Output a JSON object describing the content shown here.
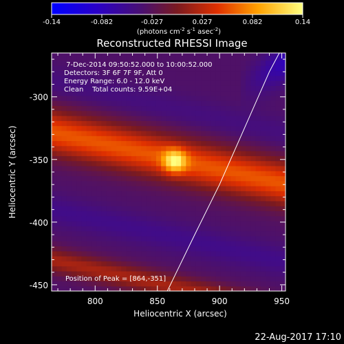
{
  "chart_data": {
    "type": "heatmap",
    "title": "Reconstructed RHESSI Image",
    "xlabel": "Heliocentric X (arcsec)",
    "ylabel": "Heliocentric Y (arcsec)",
    "xlim": [
      765,
      953
    ],
    "ylim": [
      -455,
      -265
    ],
    "xticks": [
      800,
      850,
      900,
      950
    ],
    "yticks": [
      -300,
      -350,
      -400,
      -450
    ],
    "colorbar": {
      "range": [
        -0.14,
        0.14
      ],
      "ticks": [
        "-0.14",
        "-0.082",
        "-0.027",
        "0.027",
        "0.082",
        "0.14"
      ],
      "label_prefix": "(photons cm",
      "label_exp1": "-2",
      "label_mid": " s",
      "label_exp2": "-1",
      "label_mid2": " asec",
      "label_exp3": "-2",
      "label_suffix": ")"
    },
    "info": [
      " 7-Dec-2014 09:50:52.000 to 10:00:52.000",
      "Detectors: 3F 6F 7F 9F, Att 0",
      "Energy Range: 6.0 - 12.0 keV",
      "Clean    Total counts: 9.59E+04"
    ],
    "peak": {
      "label": "Position of Peak = [864,-351]",
      "x": 864,
      "y": -351,
      "value": 0.14
    },
    "bands": [
      {
        "name": "upper band",
        "x": 765,
        "y": -328,
        "slope": -0.22,
        "width": 18,
        "value": 0.06
      },
      {
        "name": "lower band",
        "x": 765,
        "y": -430,
        "slope": -0.22,
        "width": 10,
        "value": 0.02
      }
    ],
    "troughs": [
      {
        "y": -288,
        "value": -0.03
      },
      {
        "y": -390,
        "value": -0.04
      }
    ],
    "limb": [
      [
        858,
        -455
      ],
      [
        880,
        -410
      ],
      [
        900,
        -370
      ],
      [
        920,
        -325
      ],
      [
        940,
        -280
      ],
      [
        948,
        -265
      ]
    ],
    "colors": {
      "background": "#000000",
      "text": "#ffffff",
      "limb": "#ffffff"
    }
  },
  "footer": {
    "date": "22-Aug-2017 17:10"
  }
}
